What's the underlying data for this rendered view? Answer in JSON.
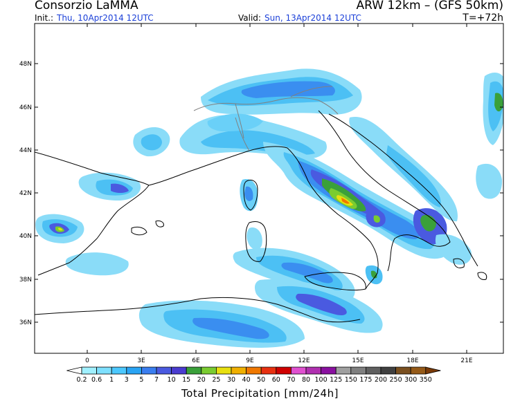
{
  "header": {
    "title_left": "Consorzio LaMMA",
    "title_right": "ARW 12km – (GFS 50km)",
    "init_label": "Init.:",
    "init_value": "Thu, 10Apr2014 12UTC",
    "valid_label": "Valid:",
    "valid_value": "Sun, 13Apr2014 12UTC",
    "lead_time": "T=+72h"
  },
  "axes": {
    "lat_labels": [
      "48N",
      "46N",
      "44N",
      "42N",
      "40N",
      "38N",
      "36N"
    ],
    "lon_labels": [
      "0",
      "3E",
      "6E",
      "9E",
      "12E",
      "15E",
      "18E",
      "21E"
    ]
  },
  "colorbar": {
    "title": "Total Precipitation [mm/24h]",
    "levels": [
      "0.2",
      "0.6",
      "1",
      "3",
      "5",
      "7",
      "10",
      "15",
      "20",
      "25",
      "30",
      "40",
      "50",
      "60",
      "70",
      "80",
      "100",
      "125",
      "150",
      "175",
      "200",
      "250",
      "300",
      "350"
    ],
    "colors": [
      "#a0f0ff",
      "#7ee0ff",
      "#4cc8ff",
      "#2aa4f4",
      "#3a7ef0",
      "#4a5ae0",
      "#4a3cd0",
      "#3aa03a",
      "#7acc30",
      "#e8e010",
      "#f0b000",
      "#f07800",
      "#e83010",
      "#d00000",
      "#e050d0",
      "#b030b0",
      "#8a10a0",
      "#a0a0a0",
      "#808080",
      "#606060",
      "#404040",
      "#7a5020",
      "#955a18",
      "#7a3a08"
    ]
  },
  "colors": {
    "land": "#ffffff",
    "coast": "#000000",
    "border": "#808080",
    "date_text": "#1a3fd8"
  }
}
